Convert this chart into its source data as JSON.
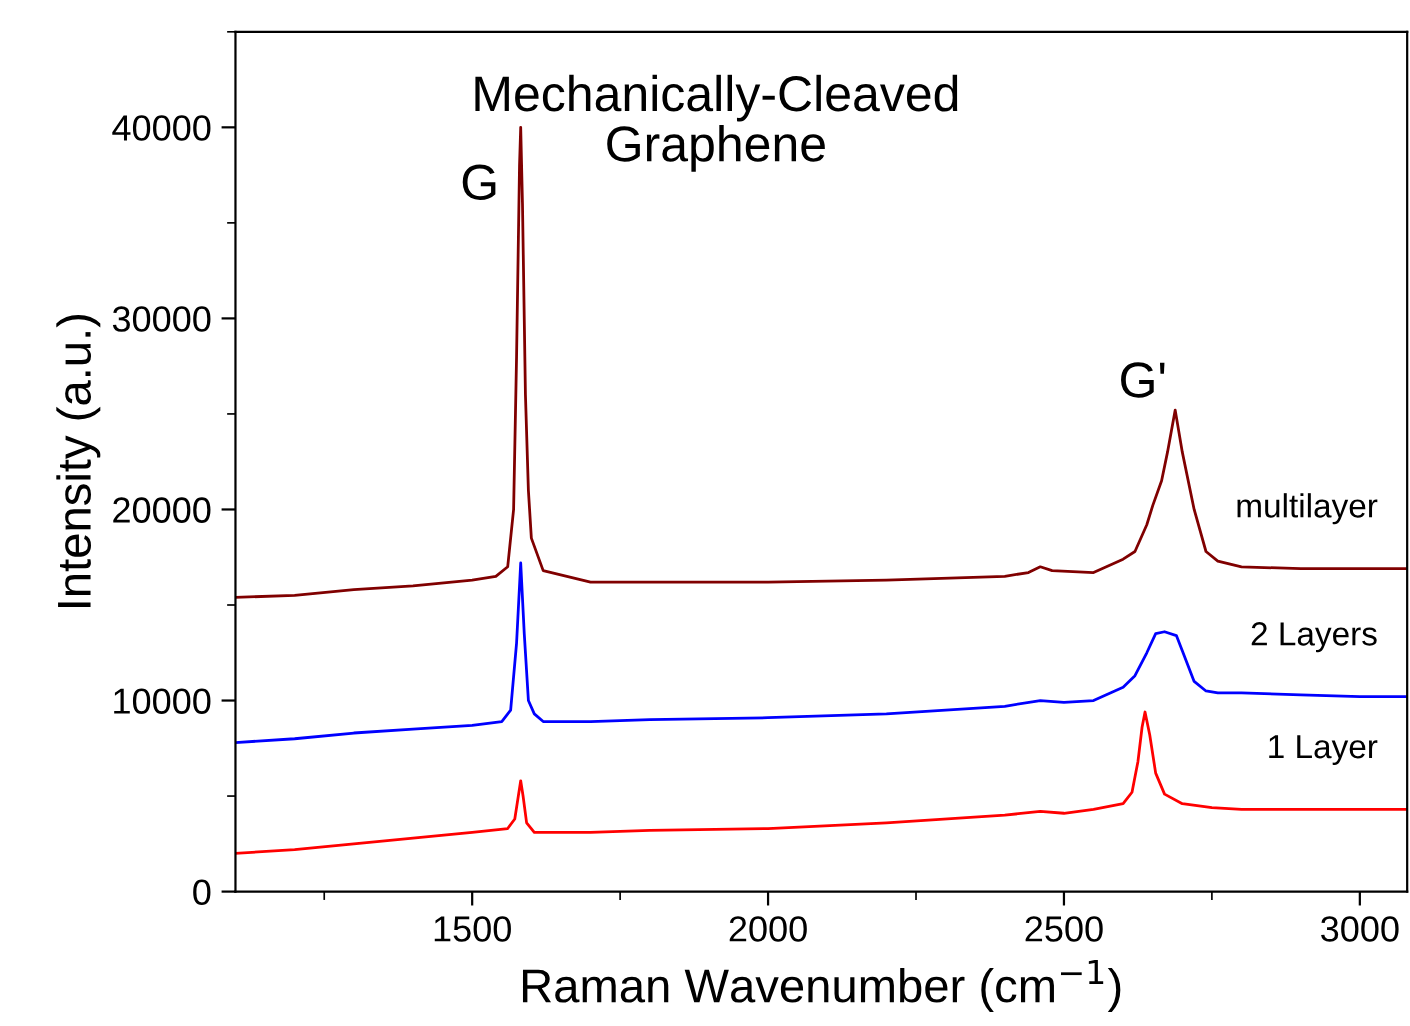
{
  "chart_data": {
    "type": "line",
    "title": "Mechanically-Cleaved\nGraphene",
    "xlabel": "Raman Wavenumber (cm$^{−1}$)",
    "ylabel": "Intensity (a.u.)",
    "xlim": [
      1100,
      3080
    ],
    "ylim": [
      0,
      45000
    ],
    "xticks": [
      1500,
      2000,
      2500,
      3000
    ],
    "yticks": [
      0,
      10000,
      20000,
      30000,
      40000
    ],
    "grid": false,
    "legend": false,
    "marker": "none",
    "line_style": "solid",
    "annotations": [
      "G",
      "G'"
    ],
    "series": [
      {
        "name": "multilayer",
        "color": "#800000",
        "x": [
          1100,
          1200,
          1300,
          1400,
          1500,
          1540,
          1560,
          1570,
          1575,
          1580,
          1582,
          1585,
          1590,
          1595,
          1600,
          1620,
          1700,
          1800,
          2000,
          2200,
          2400,
          2440,
          2460,
          2480,
          2550,
          2600,
          2620,
          2640,
          2650,
          2665,
          2675,
          2688,
          2700,
          2720,
          2740,
          2760,
          2800,
          2900,
          3000,
          3080
        ],
        "values": [
          15400,
          15500,
          15800,
          16000,
          16300,
          16500,
          17000,
          20000,
          28000,
          38000,
          40000,
          36000,
          26000,
          21000,
          18500,
          16800,
          16200,
          16200,
          16200,
          16300,
          16500,
          16700,
          17000,
          16800,
          16700,
          17400,
          17800,
          19200,
          20200,
          21500,
          23000,
          25200,
          23000,
          20000,
          17800,
          17300,
          17000,
          16900,
          16900,
          16900
        ]
      },
      {
        "name": "2 Layers",
        "color": "#0000ff",
        "x": [
          1100,
          1200,
          1300,
          1400,
          1500,
          1550,
          1565,
          1575,
          1582,
          1588,
          1595,
          1605,
          1620,
          1700,
          1800,
          2000,
          2200,
          2300,
          2400,
          2460,
          2500,
          2550,
          2600,
          2620,
          2640,
          2655,
          2670,
          2690,
          2700,
          2720,
          2740,
          2760,
          2800,
          2900,
          3000,
          3080
        ],
        "values": [
          7800,
          8000,
          8300,
          8500,
          8700,
          8900,
          9500,
          13000,
          17200,
          13500,
          10000,
          9300,
          8900,
          8900,
          9000,
          9100,
          9300,
          9500,
          9700,
          10000,
          9900,
          10000,
          10700,
          11300,
          12500,
          13500,
          13600,
          13400,
          12600,
          11000,
          10500,
          10400,
          10400,
          10300,
          10200,
          10200
        ]
      },
      {
        "name": "1 Layer",
        "color": "#ff0000",
        "x": [
          1100,
          1200,
          1300,
          1400,
          1500,
          1560,
          1572,
          1578,
          1582,
          1586,
          1592,
          1605,
          1700,
          1800,
          2000,
          2200,
          2400,
          2460,
          2500,
          2550,
          2600,
          2615,
          2625,
          2632,
          2637,
          2645,
          2655,
          2670,
          2700,
          2750,
          2800,
          2900,
          3000,
          3080
        ],
        "values": [
          2000,
          2200,
          2500,
          2800,
          3100,
          3300,
          3800,
          5000,
          5800,
          5000,
          3600,
          3100,
          3100,
          3200,
          3300,
          3600,
          4000,
          4200,
          4100,
          4300,
          4600,
          5200,
          6800,
          8600,
          9400,
          8200,
          6200,
          5100,
          4600,
          4400,
          4300,
          4300,
          4300,
          4300
        ]
      }
    ]
  }
}
